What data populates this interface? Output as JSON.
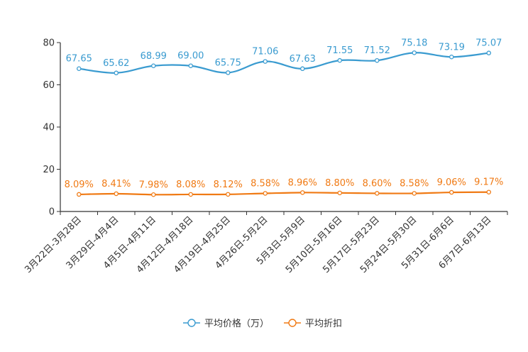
{
  "chart_data": {
    "type": "line",
    "categories": [
      "3月22日-3月28日",
      "3月29日-4月4日",
      "4月5日-4月11日",
      "4月12日-4月18日",
      "4月19日-4月25日",
      "4月26日-5月2日",
      "5月3日-5月9日",
      "5月10日-5月16日",
      "5月17日-5月23日",
      "5月24日-5月30日",
      "5月31日-6月6日",
      "6月7日-6月13日"
    ],
    "series": [
      {
        "name": "平均价格（万）",
        "color": "#3a9bd0",
        "values": [
          67.65,
          65.62,
          68.99,
          69.0,
          65.75,
          71.06,
          67.63,
          71.55,
          71.52,
          75.18,
          73.19,
          75.07
        ],
        "labels": [
          "67.65",
          "65.62",
          "68.99",
          "69.00",
          "65.75",
          "71.06",
          "67.63",
          "71.55",
          "71.52",
          "75.18",
          "73.19",
          "75.07"
        ]
      },
      {
        "name": "平均折扣",
        "color": "#f07a14",
        "values": [
          8.09,
          8.41,
          7.98,
          8.08,
          8.12,
          8.58,
          8.96,
          8.8,
          8.6,
          8.58,
          9.06,
          9.17
        ],
        "labels": [
          "8.09%",
          "8.41%",
          "7.98%",
          "8.08%",
          "8.12%",
          "8.58%",
          "8.96%",
          "8.80%",
          "8.60%",
          "8.58%",
          "9.06%",
          "9.17%"
        ]
      }
    ],
    "title": "",
    "xlabel": "",
    "ylabel": "",
    "ylim": [
      0,
      80
    ],
    "yticks": [
      "0",
      "20",
      "40",
      "60",
      "80"
    ],
    "legend": "bottom-center",
    "grid": false
  }
}
